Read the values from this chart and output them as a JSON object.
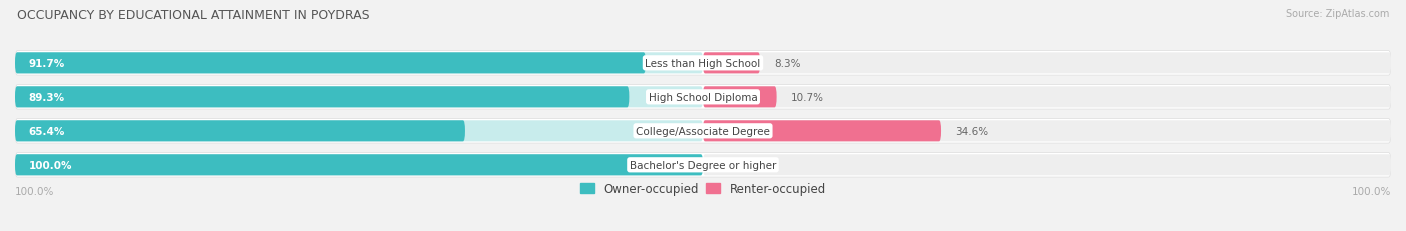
{
  "title": "OCCUPANCY BY EDUCATIONAL ATTAINMENT IN POYDRAS",
  "source": "Source: ZipAtlas.com",
  "categories": [
    "Less than High School",
    "High School Diploma",
    "College/Associate Degree",
    "Bachelor's Degree or higher"
  ],
  "owner_pct": [
    91.7,
    89.3,
    65.4,
    100.0
  ],
  "renter_pct": [
    8.3,
    10.7,
    34.6,
    0.0
  ],
  "owner_color": "#3dbdc0",
  "renter_color": "#f07090",
  "owner_bg_color": "#c8ecec",
  "renter_bg_color": "#eeeeee",
  "row_bg_color": "#e8e8e8",
  "bg_color": "#f2f2f2",
  "title_color": "#555555",
  "label_color": "#444444",
  "pct_label_color_owner": "#ffffff",
  "pct_label_color_renter": "#666666",
  "axis_label_color": "#aaaaaa",
  "legend_owner": "Owner-occupied",
  "legend_renter": "Renter-occupied",
  "x_left_label": "100.0%",
  "x_right_label": "100.0%"
}
